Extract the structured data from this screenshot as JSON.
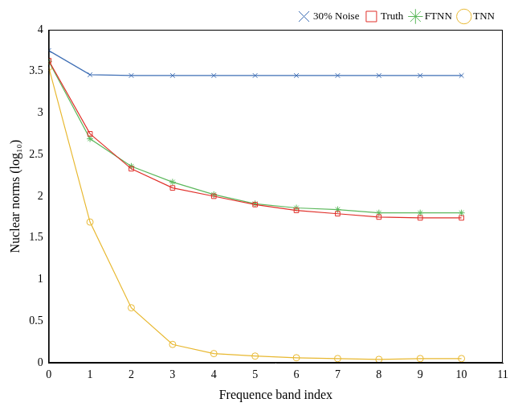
{
  "chart_data": {
    "type": "line",
    "x_label": "Frequence band index",
    "y_label": "Nuclear norms (log₁₀)",
    "x": [
      0,
      1,
      2,
      3,
      4,
      5,
      6,
      7,
      8,
      9,
      10
    ],
    "series": [
      {
        "name": "30% Noise",
        "color": "#3f6fb5",
        "marker": "x",
        "line_style": "solid",
        "values": [
          3.75,
          3.46,
          3.45,
          3.45,
          3.45,
          3.45,
          3.45,
          3.45,
          3.45,
          3.45,
          3.45
        ]
      },
      {
        "name": "Truth",
        "color": "#e0302a",
        "marker": "square",
        "line_style": "solid",
        "values": [
          3.63,
          2.75,
          2.33,
          2.1,
          2.0,
          1.9,
          1.83,
          1.79,
          1.75,
          1.74,
          1.74
        ]
      },
      {
        "name": "FTNN",
        "color": "#5cb85c",
        "marker": "star",
        "line_style": "solid",
        "values": [
          3.62,
          2.69,
          2.36,
          2.17,
          2.02,
          1.91,
          1.86,
          1.84,
          1.8,
          1.8,
          1.8
        ]
      },
      {
        "name": "TNN",
        "color": "#e8b830",
        "marker": "circle",
        "line_style": "solid",
        "values": [
          3.55,
          1.69,
          0.66,
          0.22,
          0.11,
          0.08,
          0.06,
          0.05,
          0.04,
          0.05,
          0.05
        ]
      }
    ],
    "xlim": [
      0,
      11
    ],
    "xticks": [
      0,
      1,
      2,
      3,
      4,
      5,
      6,
      7,
      8,
      9,
      10,
      11
    ],
    "ylim": [
      0,
      4
    ],
    "yticks": [
      0,
      0.5,
      1,
      1.5,
      2,
      2.5,
      3,
      3.5,
      4
    ],
    "grid": false,
    "legend": "upper right"
  }
}
